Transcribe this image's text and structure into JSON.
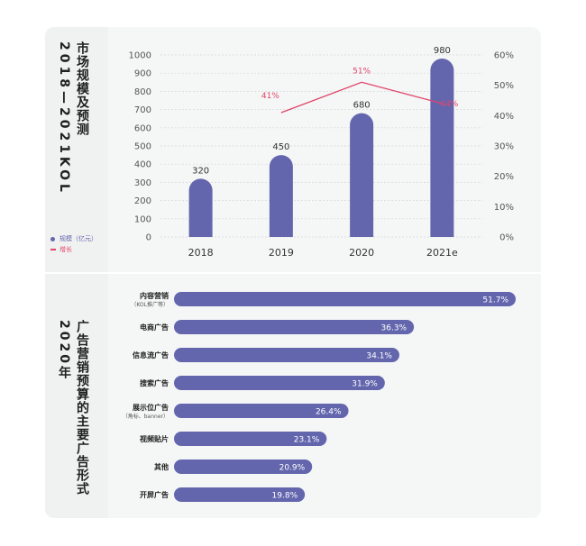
{
  "section1": {
    "title_line1": "市场规模及预测",
    "title_line2": "2018—2021KOL",
    "legend": [
      {
        "label": "规模（亿元）",
        "color": "#6366ad",
        "marker": "dot"
      },
      {
        "label": "增长",
        "color": "#e0456a",
        "marker": "line"
      }
    ]
  },
  "section2": {
    "title_line1": "广告营销预算的主要广告形式",
    "title_line2": "2020年"
  },
  "colors": {
    "bar": "#6366ad",
    "line": "#e0456a",
    "grid": "#d5d7da",
    "axis_text": "#555555"
  },
  "chart_data": [
    {
      "type": "bar",
      "categories": [
        "2018",
        "2019",
        "2020",
        "2021e"
      ],
      "series": [
        {
          "name": "规模（亿元）",
          "values": [
            320,
            450,
            680,
            980
          ],
          "value_labels": [
            "320",
            "450",
            "680",
            "980"
          ]
        },
        {
          "name": "增长",
          "type": "line",
          "axis": "right",
          "values": [
            null,
            41,
            51,
            44
          ],
          "value_labels": [
            "",
            "41%",
            "51%",
            "44%"
          ]
        }
      ],
      "ylim": [
        0,
        1000
      ],
      "yticks": [
        "0",
        "100",
        "200",
        "300",
        "400",
        "500",
        "600",
        "700",
        "800",
        "900",
        "1000"
      ],
      "y2lim": [
        0,
        60
      ],
      "y2ticks": [
        "0%",
        "10%",
        "20%",
        "30%",
        "40%",
        "50%",
        "60%"
      ],
      "grid": true
    },
    {
      "type": "bar",
      "orientation": "horizontal",
      "categories": [
        {
          "label": "内容营销",
          "sub": "（KOL推广等）"
        },
        {
          "label": "电商广告",
          "sub": ""
        },
        {
          "label": "信息流广告",
          "sub": ""
        },
        {
          "label": "搜索广告",
          "sub": ""
        },
        {
          "label": "展示位广告",
          "sub": "（角标、banner）"
        },
        {
          "label": "视频贴片",
          "sub": ""
        },
        {
          "label": "其他",
          "sub": ""
        },
        {
          "label": "开屏广告",
          "sub": ""
        }
      ],
      "values": [
        51.7,
        36.3,
        34.1,
        31.9,
        26.4,
        23.1,
        20.9,
        19.8
      ],
      "value_labels": [
        "51.7%",
        "36.3%",
        "34.1%",
        "31.9%",
        "26.4%",
        "23.1%",
        "20.9%",
        "19.8%"
      ]
    }
  ]
}
